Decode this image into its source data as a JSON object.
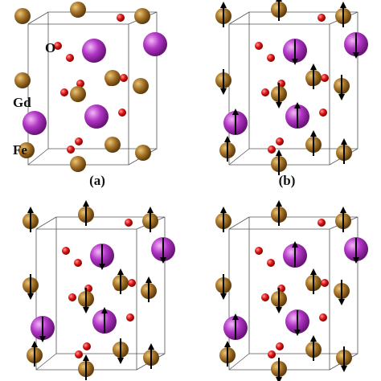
{
  "labels": {
    "oxygen": "O",
    "gadolinium": "Gd",
    "iron": "Fe"
  },
  "panels": [
    "(a)",
    "(b)"
  ]
}
